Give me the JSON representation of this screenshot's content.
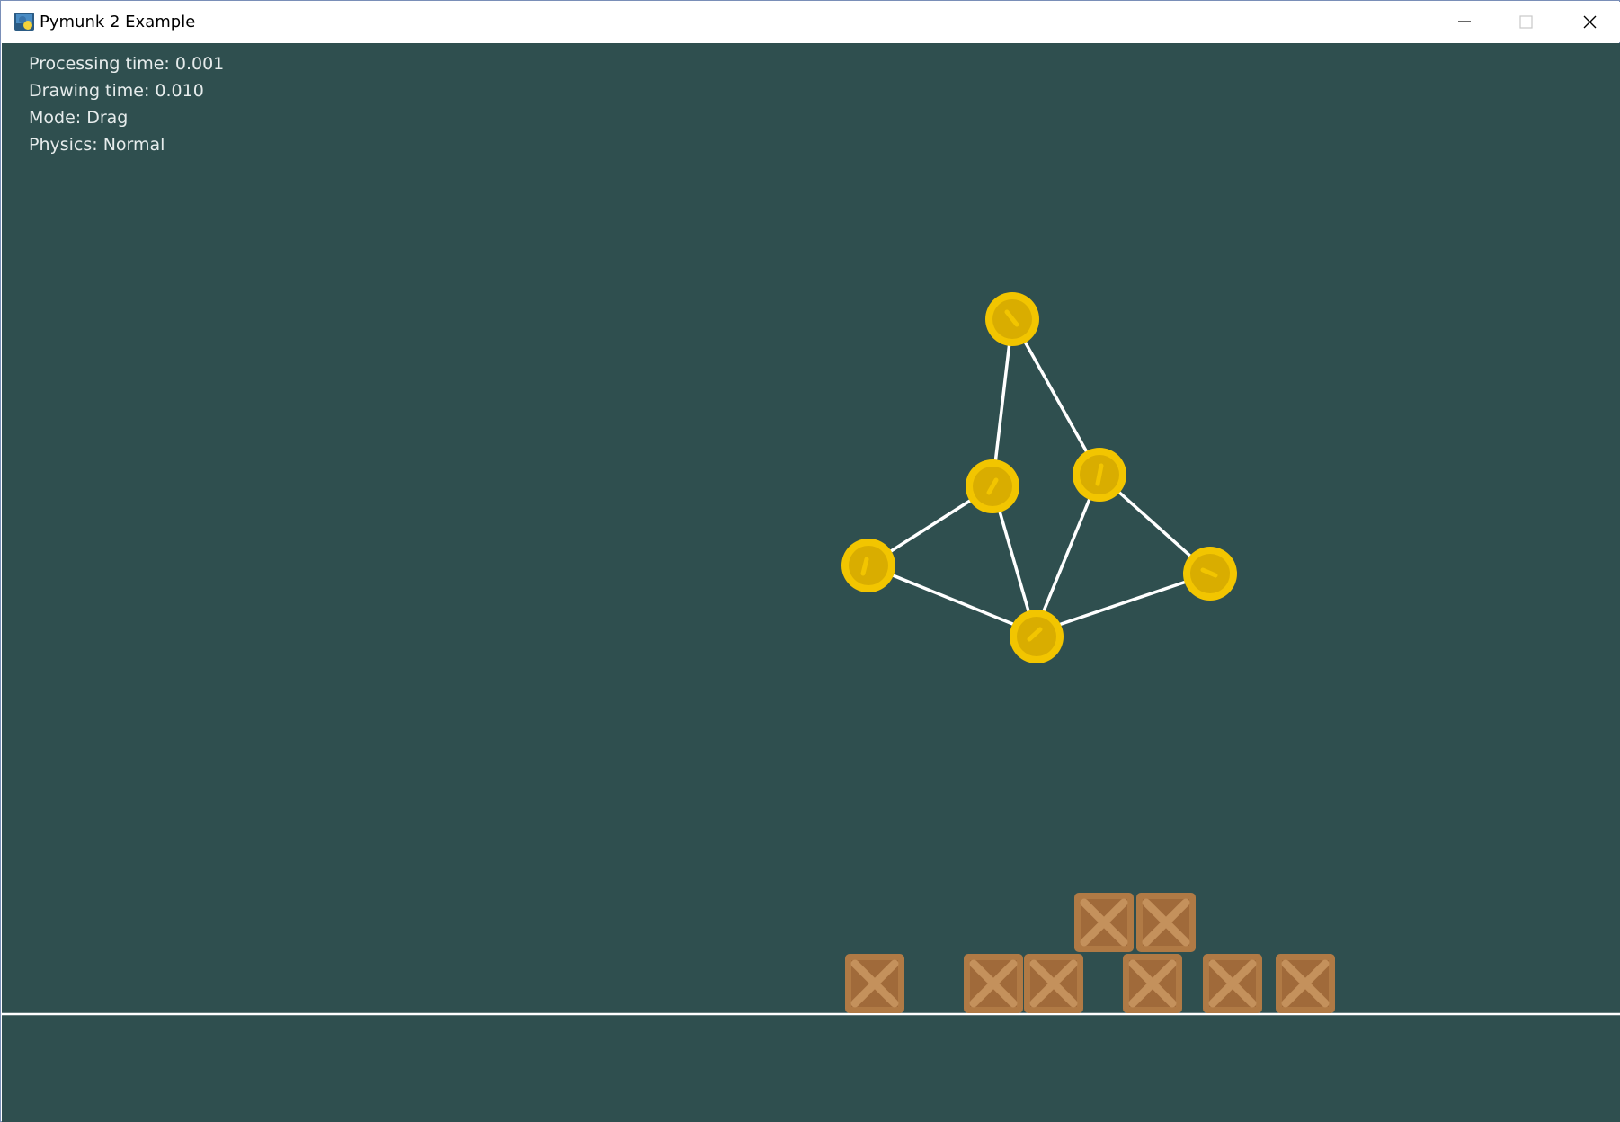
{
  "window": {
    "title": "Pymunk 2 Example",
    "icon": "python-logo-icon",
    "controls": [
      "minimize-icon",
      "maximize-icon",
      "close-icon"
    ]
  },
  "hud": {
    "processing_time": "Processing time: 0.001",
    "drawing_time": "Drawing time: 0.010",
    "mode": "Mode: Drag",
    "physics": "Physics: Normal"
  },
  "colors": {
    "background": "#2f4f4f",
    "coin": "#f2c500",
    "coin_inner": "#d9ad00",
    "constraint_line": "#ffffff",
    "crate": "#b07a45",
    "crate_dark": "#9a6535",
    "floor_line": "#ffffff"
  }
}
